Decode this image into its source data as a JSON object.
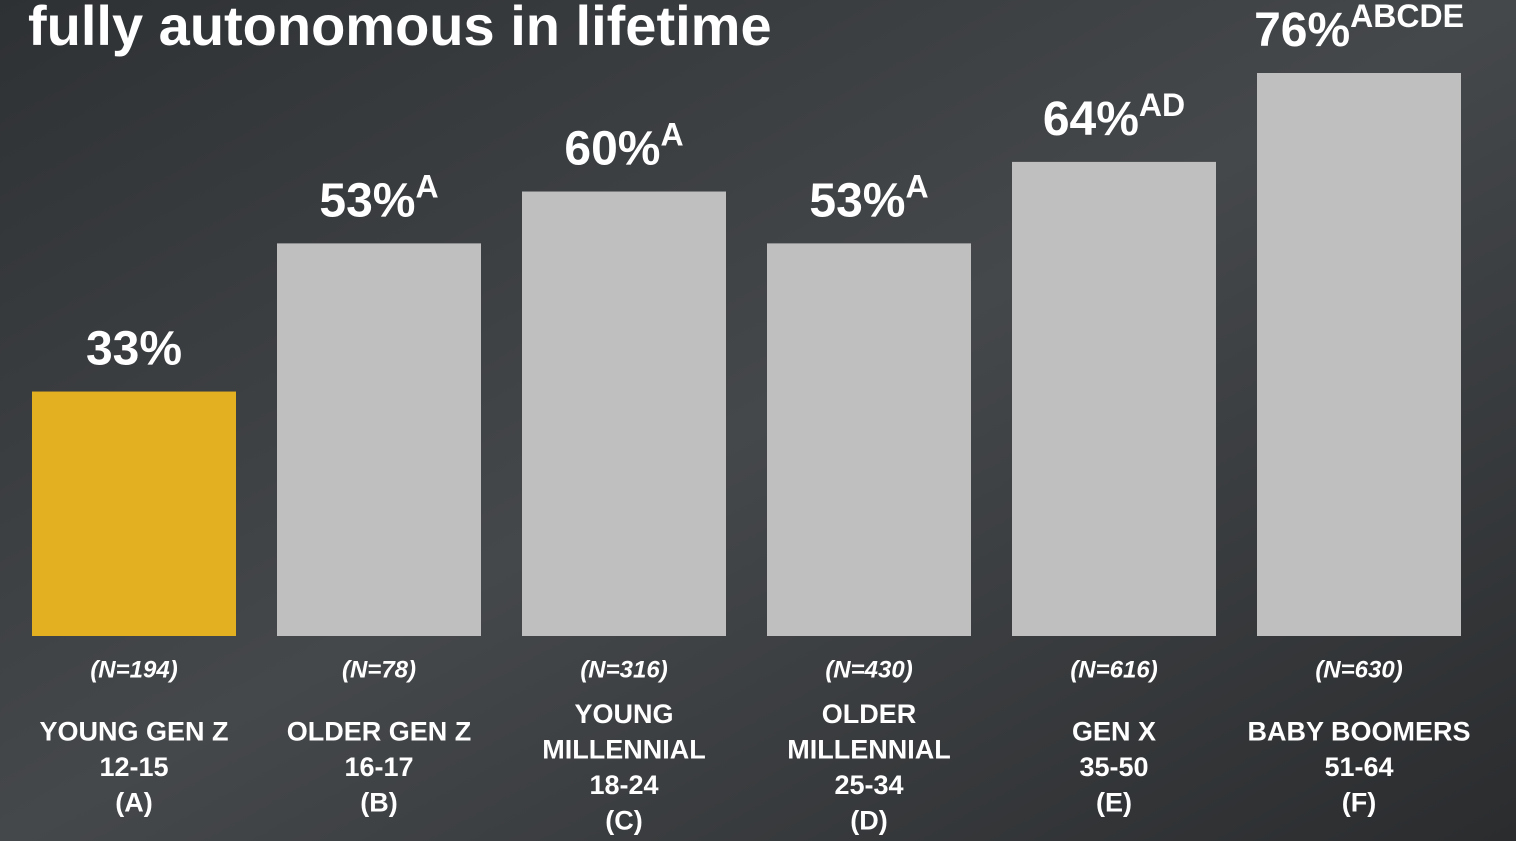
{
  "chart_data": {
    "type": "bar",
    "title": "fully autonomous in lifetime",
    "categories": [
      [
        "YOUNG GEN Z",
        "12-15",
        "(A)"
      ],
      [
        "OLDER GEN Z",
        "16-17",
        "(B)"
      ],
      [
        "YOUNG",
        "MILLENNIAL",
        "18-24",
        "(C)"
      ],
      [
        "OLDER",
        "MILLENNIAL",
        "25-34",
        "(D)"
      ],
      [
        "GEN X",
        "35-50",
        "(E)"
      ],
      [
        "BABY BOOMERS",
        "51-64",
        "(F)"
      ]
    ],
    "sample_sizes": [
      "(N=194)",
      "(N=78)",
      "(N=316)",
      "(N=430)",
      "(N=616)",
      "(N=630)"
    ],
    "values": [
      33,
      53,
      60,
      53,
      64,
      76
    ],
    "value_labels": [
      "33%",
      "53%",
      "60%",
      "53%",
      "64%",
      "76%"
    ],
    "significance": [
      null,
      "A",
      "A",
      "A",
      "AD",
      "ABCDE"
    ],
    "colors": [
      "#e3b021",
      "#bfbfbf",
      "#bfbfbf",
      "#bfbfbf",
      "#bfbfbf",
      "#bfbfbf"
    ]
  }
}
